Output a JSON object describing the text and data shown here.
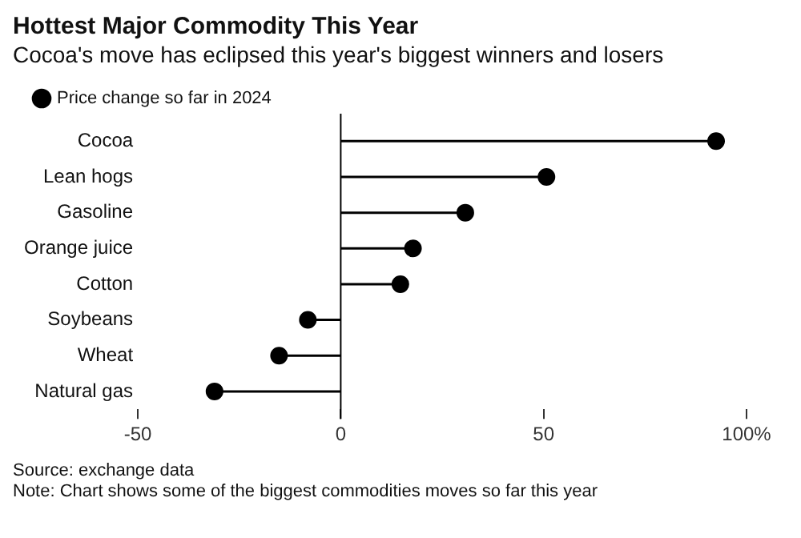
{
  "chart_data": {
    "type": "lollipop",
    "orientation": "horizontal",
    "title": "Hottest Major Commodity This Year",
    "subtitle": "Cocoa's move has eclipsed this year's biggest winners and losers",
    "categories": [
      "Cocoa",
      "Lean hogs",
      "Gasoline",
      "Orange juice",
      "Cotton",
      "Soybeans",
      "Wheat",
      "Natural gas"
    ],
    "series": [
      {
        "name": "Price change so far in 2024",
        "color": "#000000",
        "values": [
          92.5,
          50.7,
          30.7,
          17.8,
          14.7,
          -8.1,
          -15.2,
          -31.1
        ]
      }
    ],
    "xlim": [
      -50,
      100
    ],
    "xticks": [
      -50,
      0,
      50,
      {
        "value": 100,
        "label": "100%"
      }
    ],
    "ref_lines": [
      {
        "axis": "x",
        "value": 0,
        "color": "#000000"
      }
    ],
    "grid": false,
    "legend": "top left",
    "marker": "circle",
    "annotations": [
      "Source: exchange data",
      "Note: Chart shows some of the biggest commodities moves so far this year"
    ]
  }
}
